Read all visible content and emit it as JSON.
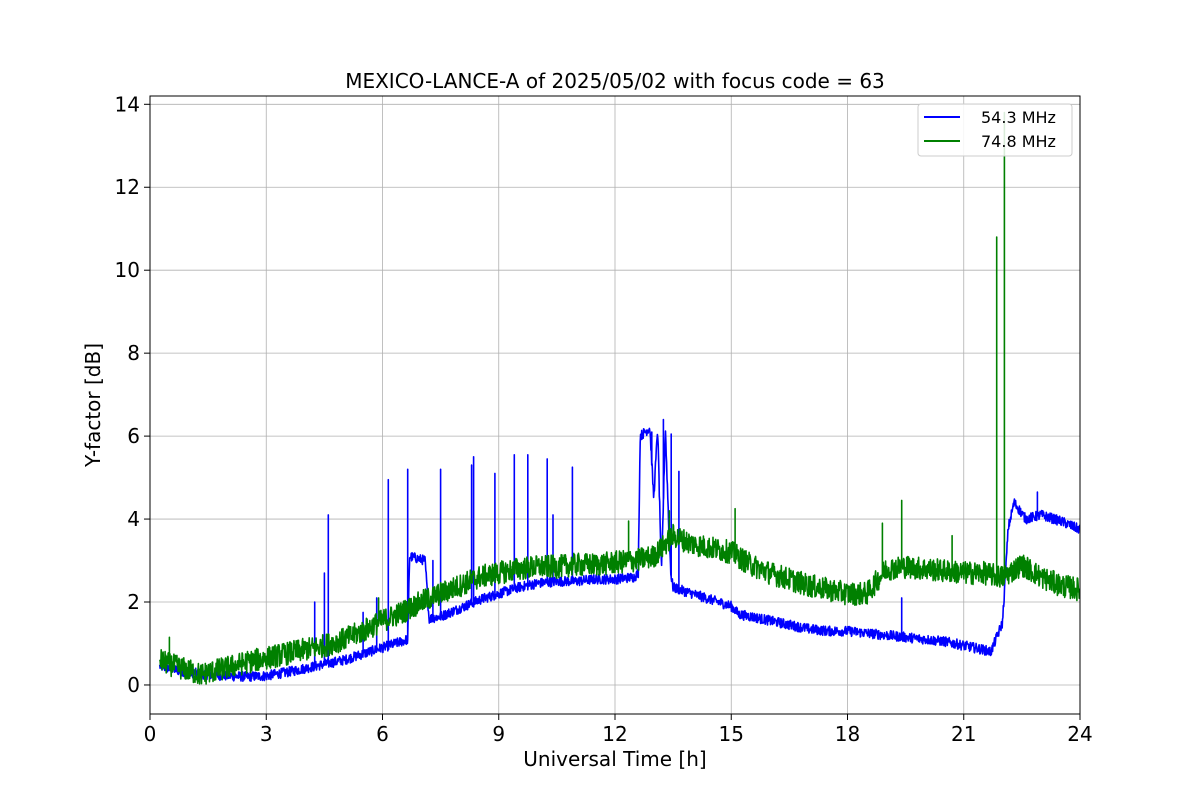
{
  "chart_data": {
    "type": "line",
    "title": "MEXICO-LANCE-A of 2025/05/02 with focus code = 63",
    "xlabel": "Universal Time [h]",
    "ylabel": "Y-factor [dB]",
    "xlim": [
      0,
      24
    ],
    "ylim": [
      -0.7,
      14.2
    ],
    "xticks": [
      0,
      3,
      6,
      9,
      12,
      15,
      18,
      21,
      24
    ],
    "yticks": [
      0,
      2,
      4,
      6,
      8,
      10,
      12,
      14
    ],
    "grid": true,
    "legend_position": "top-right",
    "series": [
      {
        "name": "54.3 MHz",
        "color": "#0000ff",
        "baseline": [
          [
            0.25,
            0.45
          ],
          [
            0.5,
            0.4
          ],
          [
            1.0,
            0.3
          ],
          [
            1.5,
            0.25
          ],
          [
            2.0,
            0.22
          ],
          [
            2.5,
            0.2
          ],
          [
            3.0,
            0.22
          ],
          [
            3.5,
            0.3
          ],
          [
            4.0,
            0.4
          ],
          [
            4.5,
            0.5
          ],
          [
            5.0,
            0.6
          ],
          [
            5.5,
            0.75
          ],
          [
            6.0,
            0.9
          ],
          [
            6.5,
            1.05
          ],
          [
            6.65,
            1.1
          ],
          [
            6.7,
            3.1
          ],
          [
            7.1,
            3.0
          ],
          [
            7.2,
            1.6
          ],
          [
            7.5,
            1.65
          ],
          [
            8.0,
            1.85
          ],
          [
            8.5,
            2.05
          ],
          [
            9.0,
            2.2
          ],
          [
            9.5,
            2.35
          ],
          [
            10.0,
            2.45
          ],
          [
            10.5,
            2.5
          ],
          [
            11.0,
            2.5
          ],
          [
            11.5,
            2.55
          ],
          [
            12.0,
            2.55
          ],
          [
            12.5,
            2.6
          ],
          [
            12.6,
            2.7
          ],
          [
            12.65,
            6.0
          ],
          [
            12.9,
            6.2
          ],
          [
            13.0,
            4.5
          ],
          [
            13.1,
            6.2
          ],
          [
            13.2,
            2.7
          ],
          [
            13.3,
            6.2
          ],
          [
            13.4,
            3.5
          ],
          [
            13.45,
            2.6
          ],
          [
            13.5,
            2.35
          ],
          [
            14.0,
            2.2
          ],
          [
            14.5,
            2.05
          ],
          [
            15.0,
            1.9
          ],
          [
            15.2,
            1.7
          ],
          [
            15.5,
            1.65
          ],
          [
            16.0,
            1.55
          ],
          [
            16.5,
            1.45
          ],
          [
            17.0,
            1.35
          ],
          [
            17.5,
            1.3
          ],
          [
            18.0,
            1.3
          ],
          [
            18.5,
            1.25
          ],
          [
            19.0,
            1.2
          ],
          [
            19.5,
            1.15
          ],
          [
            20.0,
            1.1
          ],
          [
            20.5,
            1.05
          ],
          [
            21.0,
            0.95
          ],
          [
            21.5,
            0.85
          ],
          [
            21.7,
            0.8
          ],
          [
            22.0,
            1.5
          ],
          [
            22.15,
            3.8
          ],
          [
            22.3,
            4.4
          ],
          [
            22.6,
            4.0
          ],
          [
            23.0,
            4.1
          ],
          [
            23.5,
            3.95
          ],
          [
            24.0,
            3.75
          ]
        ],
        "spikes": [
          [
            4.25,
            2.0
          ],
          [
            4.5,
            2.7
          ],
          [
            4.6,
            4.1
          ],
          [
            5.5,
            1.75
          ],
          [
            5.85,
            2.1
          ],
          [
            6.15,
            4.95
          ],
          [
            6.65,
            5.2
          ],
          [
            7.3,
            3.0
          ],
          [
            7.5,
            5.2
          ],
          [
            8.3,
            5.3
          ],
          [
            8.35,
            5.5
          ],
          [
            8.9,
            5.1
          ],
          [
            9.4,
            5.55
          ],
          [
            9.75,
            5.55
          ],
          [
            10.25,
            5.45
          ],
          [
            10.4,
            4.1
          ],
          [
            10.9,
            5.25
          ],
          [
            12.95,
            6.1
          ],
          [
            13.25,
            6.4
          ],
          [
            13.45,
            6.05
          ],
          [
            13.65,
            5.15
          ],
          [
            19.4,
            2.1
          ],
          [
            22.9,
            4.65
          ]
        ],
        "noise": 0.12
      },
      {
        "name": "74.8 MHz",
        "color": "#008000",
        "baseline": [
          [
            0.25,
            0.6
          ],
          [
            0.5,
            0.5
          ],
          [
            1.0,
            0.35
          ],
          [
            1.3,
            0.25
          ],
          [
            1.5,
            0.3
          ],
          [
            2.0,
            0.42
          ],
          [
            2.5,
            0.55
          ],
          [
            3.0,
            0.65
          ],
          [
            3.5,
            0.75
          ],
          [
            4.0,
            0.85
          ],
          [
            4.5,
            0.95
          ],
          [
            5.0,
            1.1
          ],
          [
            5.5,
            1.3
          ],
          [
            6.0,
            1.55
          ],
          [
            6.5,
            1.75
          ],
          [
            7.0,
            2.0
          ],
          [
            7.5,
            2.2
          ],
          [
            8.0,
            2.4
          ],
          [
            8.5,
            2.6
          ],
          [
            9.0,
            2.7
          ],
          [
            9.5,
            2.8
          ],
          [
            10.0,
            2.85
          ],
          [
            10.5,
            2.85
          ],
          [
            11.0,
            2.9
          ],
          [
            11.5,
            2.9
          ],
          [
            12.0,
            2.95
          ],
          [
            12.5,
            3.0
          ],
          [
            13.0,
            3.1
          ],
          [
            13.5,
            3.6
          ],
          [
            14.0,
            3.4
          ],
          [
            14.5,
            3.3
          ],
          [
            15.0,
            3.2
          ],
          [
            15.5,
            2.9
          ],
          [
            16.0,
            2.7
          ],
          [
            16.5,
            2.55
          ],
          [
            17.0,
            2.4
          ],
          [
            17.5,
            2.3
          ],
          [
            18.0,
            2.2
          ],
          [
            18.5,
            2.2
          ],
          [
            19.0,
            2.8
          ],
          [
            19.5,
            2.85
          ],
          [
            20.0,
            2.8
          ],
          [
            20.5,
            2.75
          ],
          [
            21.0,
            2.7
          ],
          [
            21.5,
            2.7
          ],
          [
            22.0,
            2.6
          ],
          [
            22.5,
            2.9
          ],
          [
            23.0,
            2.6
          ],
          [
            23.5,
            2.4
          ],
          [
            24.0,
            2.3
          ]
        ],
        "spikes": [
          [
            0.5,
            1.15
          ],
          [
            5.9,
            2.1
          ],
          [
            12.35,
            3.95
          ],
          [
            13.4,
            4.2
          ],
          [
            15.1,
            4.25
          ],
          [
            18.9,
            3.9
          ],
          [
            19.4,
            4.45
          ],
          [
            20.7,
            3.6
          ],
          [
            21.85,
            10.8
          ],
          [
            22.05,
            13.8
          ]
        ],
        "noise": 0.28
      }
    ]
  }
}
